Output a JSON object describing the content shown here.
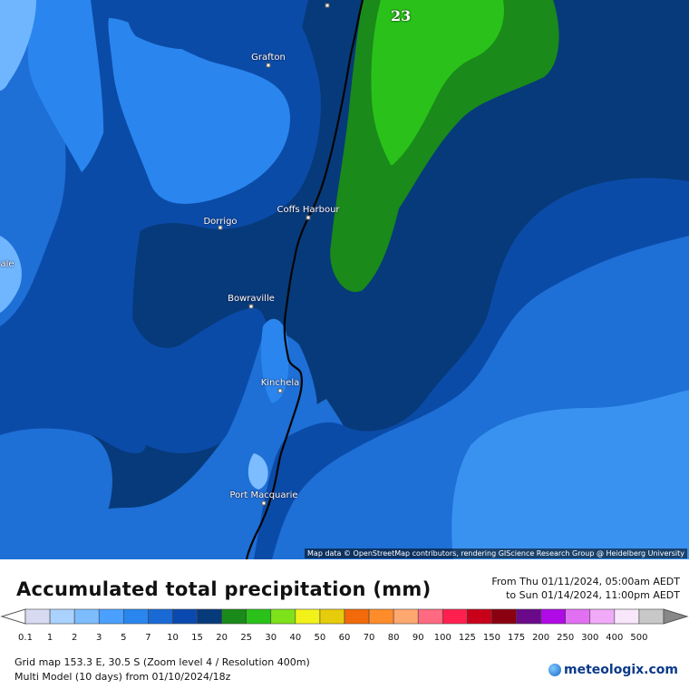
{
  "map": {
    "attribution": "Map data © OpenStreetMap contributors, rendering GIScience Research Group @ Heidelberg University",
    "cell_value": "23",
    "towns": [
      {
        "name": "Grafton"
      },
      {
        "name": "Dorrigo"
      },
      {
        "name": "Coffs Harbour"
      },
      {
        "name": "Bowraville"
      },
      {
        "name": "Kinchela"
      },
      {
        "name": "Port Macquarie"
      },
      {
        "name": "ale"
      }
    ]
  },
  "header": {
    "title": "Accumulated total precipitation (mm)",
    "from_line": "From Thu 01/11/2024, 05:00am AEDT",
    "to_line": "to Sun 01/14/2024, 11:00pm AEDT"
  },
  "legend": {
    "labels": [
      "0.1",
      "1",
      "2",
      "3",
      "5",
      "7",
      "10",
      "15",
      "20",
      "25",
      "30",
      "40",
      "50",
      "60",
      "70",
      "80",
      "90",
      "100",
      "125",
      "150",
      "175",
      "200",
      "250",
      "300",
      "400",
      "500"
    ],
    "colors": [
      "#d8daf2",
      "#aad2ff",
      "#7cbcff",
      "#4aa0ff",
      "#2a86ee",
      "#1a6ad6",
      "#0a4ab0",
      "#063a7a",
      "#1a8a1a",
      "#2ac21a",
      "#7ee21a",
      "#f2f21a",
      "#e6cc0a",
      "#f26a0a",
      "#ff8c2a",
      "#ffa870",
      "#ff6a80",
      "#ff2050",
      "#c8001a",
      "#8a0010",
      "#6a0a8a",
      "#b00ae6",
      "#e270f2",
      "#f0aaf8",
      "#f8e6fa",
      "#c8c8c8"
    ]
  },
  "footer": {
    "grid_info": "Grid map 153.3 E, 30.5 S (Zoom level 4 / Resolution 400m)",
    "model_info": "Multi Model (10 days) from 01/10/2024/18z",
    "brand": "meteologix.com"
  }
}
